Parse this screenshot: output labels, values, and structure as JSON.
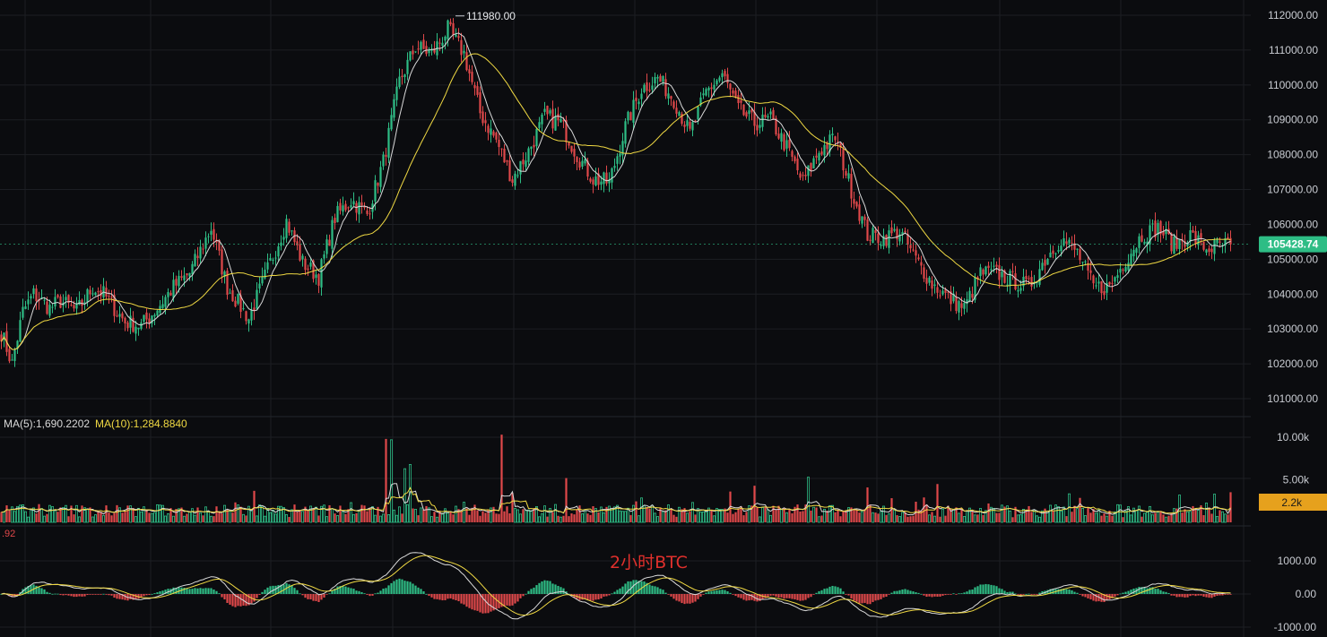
{
  "colors": {
    "background": "#0b0c0f",
    "grid": "#1c1e23",
    "up": "#2ebd85",
    "down": "#e0484a",
    "ma_fast": "#d9d9d9",
    "ma_slow": "#f0d943",
    "price_tag": "#2ebd85",
    "volume_tag": "#e6a11d",
    "annotation": "#e0302c"
  },
  "chart_data": [
    {
      "type": "candlestick",
      "panel": "price",
      "title": "2小时BTC",
      "y_ticks": [
        "112000.00",
        "111000.00",
        "110000.00",
        "109000.00",
        "108000.00",
        "107000.00",
        "106000.00",
        "105000.00",
        "104000.00",
        "103000.00",
        "102000.00",
        "101000.00"
      ],
      "ylim": [
        100500,
        112300
      ],
      "high_label": "111980.00",
      "last_price": 105428.74,
      "last_price_label": "105428.74",
      "keypoints": [
        [
          0,
          102900
        ],
        [
          4,
          102000
        ],
        [
          8,
          103500
        ],
        [
          12,
          104000
        ],
        [
          18,
          103600
        ],
        [
          22,
          103800
        ],
        [
          28,
          103500
        ],
        [
          34,
          104200
        ],
        [
          38,
          104000
        ],
        [
          46,
          103200
        ],
        [
          52,
          103100
        ],
        [
          58,
          103600
        ],
        [
          64,
          104200
        ],
        [
          70,
          104600
        ],
        [
          78,
          105900
        ],
        [
          84,
          104200
        ],
        [
          92,
          103300
        ],
        [
          100,
          104900
        ],
        [
          106,
          106100
        ],
        [
          112,
          104900
        ],
        [
          118,
          104500
        ],
        [
          124,
          106200
        ],
        [
          130,
          106700
        ],
        [
          136,
          106300
        ],
        [
          142,
          107800
        ],
        [
          148,
          110100
        ],
        [
          154,
          111100
        ],
        [
          160,
          110900
        ],
        [
          166,
          111600
        ],
        [
          172,
          110900
        ],
        [
          178,
          109200
        ],
        [
          184,
          108400
        ],
        [
          190,
          107300
        ],
        [
          196,
          108100
        ],
        [
          202,
          109100
        ],
        [
          208,
          108900
        ],
        [
          214,
          108000
        ],
        [
          220,
          107300
        ],
        [
          226,
          107200
        ],
        [
          232,
          108800
        ],
        [
          238,
          109900
        ],
        [
          244,
          110200
        ],
        [
          250,
          109600
        ],
        [
          256,
          108600
        ],
        [
          262,
          109800
        ],
        [
          268,
          110300
        ],
        [
          274,
          109300
        ],
        [
          280,
          108900
        ],
        [
          286,
          109000
        ],
        [
          292,
          108200
        ],
        [
          298,
          107200
        ],
        [
          304,
          108100
        ],
        [
          310,
          108500
        ],
        [
          316,
          107000
        ],
        [
          322,
          105700
        ],
        [
          328,
          105600
        ],
        [
          334,
          105800
        ],
        [
          340,
          105000
        ],
        [
          346,
          104300
        ],
        [
          352,
          103900
        ],
        [
          358,
          103600
        ],
        [
          364,
          104600
        ],
        [
          370,
          104600
        ],
        [
          376,
          104400
        ],
        [
          382,
          104200
        ],
        [
          388,
          105000
        ],
        [
          394,
          105600
        ],
        [
          400,
          105200
        ],
        [
          406,
          104200
        ],
        [
          412,
          104200
        ],
        [
          418,
          105000
        ],
        [
          424,
          105700
        ],
        [
          430,
          105900
        ],
        [
          436,
          105400
        ],
        [
          442,
          105700
        ],
        [
          448,
          105300
        ],
        [
          454,
          105400
        ],
        [
          457,
          105428.74
        ]
      ]
    },
    {
      "type": "bar",
      "panel": "volume",
      "legend": [
        {
          "name": "MA(5)",
          "value": "1,690.2202",
          "label": "MA(5):1,690.2202"
        },
        {
          "name": "MA(10)",
          "value": "1,284.8840",
          "label": "MA(10):1,284.8840"
        }
      ],
      "y_ticks": [
        "10.00k",
        "5.00k"
      ],
      "ylim": [
        0,
        12000
      ],
      "last_volume_label": "2.2k",
      "spikes": [
        [
          143,
          9800
        ],
        [
          145,
          9700
        ],
        [
          186,
          10300
        ],
        [
          150,
          6300
        ],
        [
          152,
          6800
        ],
        [
          210,
          5200
        ],
        [
          300,
          5300
        ],
        [
          280,
          4300
        ],
        [
          322,
          4100
        ],
        [
          348,
          4500
        ],
        [
          438,
          3200
        ]
      ]
    },
    {
      "type": "histogram",
      "panel": "oscillator",
      "left_partial_label": ".92",
      "y_ticks": [
        "1000.00",
        "0.00",
        "-1000.00"
      ],
      "ylim": [
        -1150,
        1450
      ]
    }
  ]
}
